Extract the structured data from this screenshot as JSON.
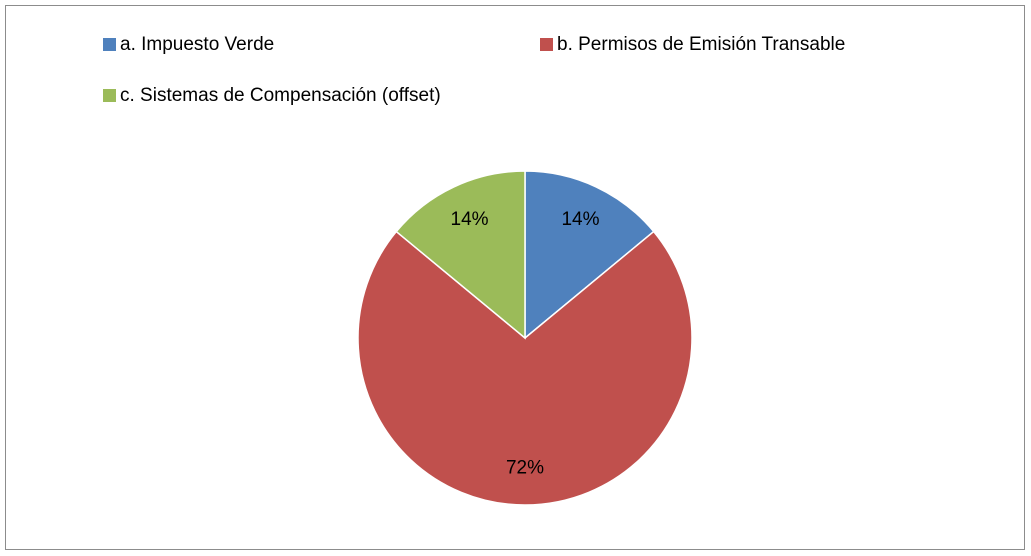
{
  "chart_data": {
    "type": "pie",
    "categories": [
      "a. Impuesto Verde",
      "b. Permisos de Emisión Transable",
      "c. Sistemas de Compensación (offset)"
    ],
    "values": [
      14,
      72,
      14
    ],
    "value_labels": [
      "14%",
      "72%",
      "14%"
    ],
    "colors": [
      "#4f81bd",
      "#c0504d",
      "#9bbb59"
    ],
    "legend": "top"
  }
}
